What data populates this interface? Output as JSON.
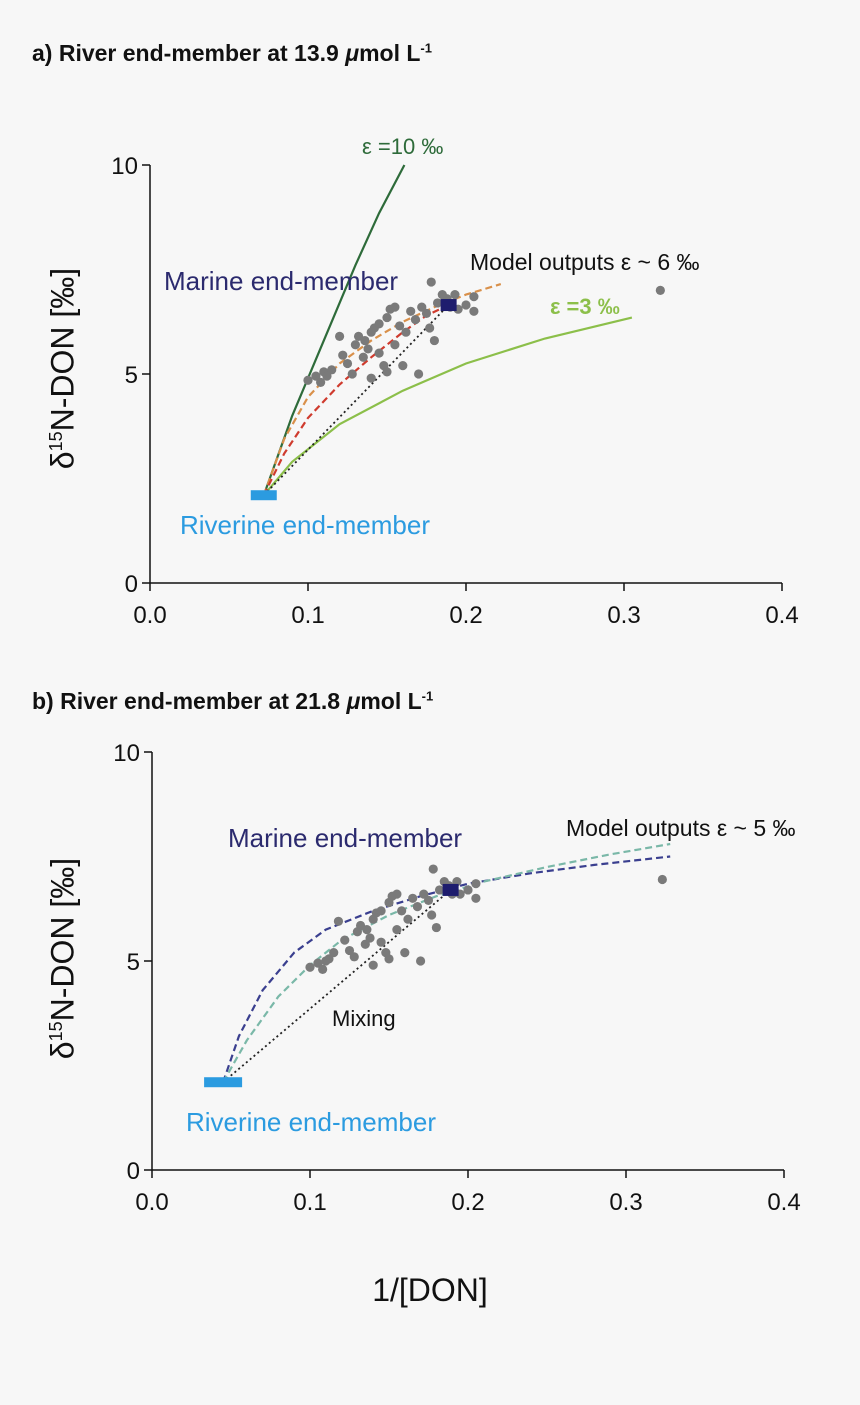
{
  "chart_data": [
    {
      "type": "scatter",
      "panel": "a",
      "title_prefix": "a) River end-member at 13.9 ",
      "title_unit": "μ",
      "title_suffix": "mol L",
      "title_sup": "-1",
      "ylabel_prefix": "δ",
      "ylabel_sup": "15",
      "ylabel_suffix": "N-DON [‰]",
      "xlim": [
        0,
        0.4
      ],
      "ylim": [
        0,
        10
      ],
      "xticks": [
        "0.0",
        "0.1",
        "0.2",
        "0.3",
        "0.4"
      ],
      "yticks": [
        "0",
        "5",
        "10"
      ],
      "annotations": {
        "eps10": "ε =10 ‰",
        "eps3": "ε =3 ‰",
        "model": "Model outputs ε ~ 6 ‰",
        "marine": "Marine end-member",
        "riverine": "Riverine end-member"
      },
      "colors": {
        "eps10": "#2e6b3a",
        "eps3": "#8cbf4a",
        "model_orange": "#d9904a",
        "model_red": "#cf3b2e",
        "marine": "#2b2a6e",
        "riverine": "#2b9be0",
        "points": "#7a7a7a"
      },
      "riverine_endmember": {
        "x": 0.072,
        "y": 2.1
      },
      "marine_endmember": {
        "x": 0.189,
        "y": 6.65
      },
      "series": [
        {
          "name": "ε =10 ‰",
          "style": "solid",
          "color": "#2e6b3a",
          "x": [
            0.072,
            0.09,
            0.11,
            0.13,
            0.145,
            0.161
          ],
          "y": [
            2.1,
            4.0,
            5.8,
            7.6,
            8.85,
            10.0
          ]
        },
        {
          "name": "ε =3 ‰",
          "style": "solid",
          "color": "#8cbf4a",
          "x": [
            0.072,
            0.09,
            0.12,
            0.16,
            0.2,
            0.25,
            0.305
          ],
          "y": [
            2.1,
            2.9,
            3.8,
            4.6,
            5.25,
            5.85,
            6.35
          ]
        },
        {
          "name": "Model outputs ε ~ 6 ‰",
          "style": "dashed",
          "color": "#d9904a",
          "x": [
            0.072,
            0.085,
            0.1,
            0.12,
            0.14,
            0.16,
            0.18,
            0.2,
            0.222
          ],
          "y": [
            2.1,
            3.45,
            4.45,
            5.25,
            5.8,
            6.25,
            6.6,
            6.9,
            7.15
          ]
        },
        {
          "name": "red dashed",
          "style": "dashed",
          "color": "#cf3b2e",
          "x": [
            0.072,
            0.085,
            0.1,
            0.12,
            0.14,
            0.16,
            0.175,
            0.189
          ],
          "y": [
            2.1,
            3.1,
            3.95,
            4.75,
            5.4,
            6.0,
            6.4,
            6.65
          ]
        },
        {
          "name": "mixing",
          "style": "dotted",
          "color": "#222222",
          "x": [
            0.072,
            0.189
          ],
          "y": [
            2.1,
            6.65
          ]
        }
      ],
      "points": {
        "x": [
          0.1,
          0.105,
          0.108,
          0.11,
          0.112,
          0.115,
          0.12,
          0.122,
          0.125,
          0.128,
          0.13,
          0.132,
          0.135,
          0.136,
          0.138,
          0.14,
          0.14,
          0.142,
          0.145,
          0.145,
          0.148,
          0.15,
          0.15,
          0.152,
          0.155,
          0.155,
          0.158,
          0.16,
          0.162,
          0.165,
          0.168,
          0.17,
          0.172,
          0.175,
          0.177,
          0.178,
          0.18,
          0.182,
          0.185,
          0.188,
          0.19,
          0.193,
          0.195,
          0.2,
          0.205,
          0.205,
          0.323
        ],
        "y": [
          4.85,
          4.95,
          4.8,
          5.05,
          4.95,
          5.1,
          5.9,
          5.45,
          5.25,
          5.0,
          5.7,
          5.9,
          5.4,
          5.8,
          5.6,
          4.9,
          6.0,
          6.1,
          6.2,
          5.5,
          5.2,
          6.35,
          5.05,
          6.55,
          5.7,
          6.6,
          6.15,
          5.2,
          6.0,
          6.5,
          6.3,
          5.0,
          6.6,
          6.45,
          6.1,
          7.2,
          5.8,
          6.7,
          6.9,
          6.8,
          6.6,
          6.9,
          6.55,
          6.65,
          6.85,
          6.5,
          7.0
        ]
      }
    },
    {
      "type": "scatter",
      "panel": "b",
      "title_prefix": "b) River end-member at 21.8 ",
      "title_unit": "μ",
      "title_suffix": "mol L",
      "title_sup": "-1",
      "ylabel_prefix": "δ",
      "ylabel_sup": "15",
      "ylabel_suffix": "N-DON [‰]",
      "xlabel": "1/[DON]",
      "xlim": [
        0,
        0.4
      ],
      "ylim": [
        0,
        10
      ],
      "xticks": [
        "0.0",
        "0.1",
        "0.2",
        "0.3",
        "0.4"
      ],
      "yticks": [
        "0",
        "5",
        "10"
      ],
      "annotations": {
        "model": "Model outputs ε ~ 5 ‰",
        "marine": "Marine end-member",
        "riverine": "Riverine end-member",
        "mixing": "Mixing"
      },
      "colors": {
        "model_navy": "#3a3f8f",
        "model_teal": "#7ab8a8",
        "marine": "#2b2a6e",
        "riverine": "#2b9be0",
        "points": "#7a7a7a"
      },
      "riverine_endmember": {
        "x": 0.045,
        "y": 2.1
      },
      "marine_endmember": {
        "x": 0.189,
        "y": 6.7
      },
      "series": [
        {
          "name": "Model outputs ε ~ 5 ‰",
          "style": "dashed",
          "color": "#3a3f8f",
          "x": [
            0.045,
            0.055,
            0.07,
            0.09,
            0.11,
            0.14,
            0.17,
            0.2,
            0.24,
            0.28,
            0.328
          ],
          "y": [
            2.1,
            3.2,
            4.3,
            5.2,
            5.75,
            6.2,
            6.55,
            6.85,
            7.1,
            7.3,
            7.5
          ]
        },
        {
          "name": "teal dashed",
          "style": "dashed",
          "color": "#7ab8a8",
          "x": [
            0.045,
            0.06,
            0.08,
            0.1,
            0.12,
            0.15,
            0.18,
            0.21,
            0.25,
            0.29,
            0.328
          ],
          "y": [
            2.1,
            3.1,
            4.15,
            4.9,
            5.5,
            6.1,
            6.55,
            6.9,
            7.25,
            7.55,
            7.8
          ]
        },
        {
          "name": "mixing",
          "style": "dotted",
          "color": "#222222",
          "x": [
            0.045,
            0.189
          ],
          "y": [
            2.1,
            6.7
          ]
        }
      ],
      "points": {
        "x": [
          0.1,
          0.105,
          0.108,
          0.11,
          0.112,
          0.115,
          0.118,
          0.122,
          0.125,
          0.128,
          0.13,
          0.132,
          0.135,
          0.136,
          0.138,
          0.14,
          0.14,
          0.142,
          0.145,
          0.145,
          0.148,
          0.15,
          0.15,
          0.152,
          0.155,
          0.155,
          0.158,
          0.16,
          0.162,
          0.165,
          0.168,
          0.17,
          0.172,
          0.175,
          0.177,
          0.178,
          0.18,
          0.182,
          0.185,
          0.188,
          0.19,
          0.193,
          0.195,
          0.2,
          0.205,
          0.205,
          0.323
        ],
        "y": [
          4.85,
          4.95,
          4.8,
          5.0,
          5.05,
          5.2,
          5.95,
          5.5,
          5.25,
          5.1,
          5.7,
          5.85,
          5.4,
          5.75,
          5.55,
          4.9,
          6.0,
          6.15,
          6.2,
          5.45,
          5.2,
          6.4,
          5.05,
          6.55,
          5.75,
          6.6,
          6.2,
          5.2,
          6.0,
          6.5,
          6.3,
          5.0,
          6.6,
          6.45,
          6.1,
          7.2,
          5.8,
          6.7,
          6.9,
          6.8,
          6.6,
          6.9,
          6.6,
          6.7,
          6.85,
          6.5,
          6.95
        ]
      }
    }
  ]
}
